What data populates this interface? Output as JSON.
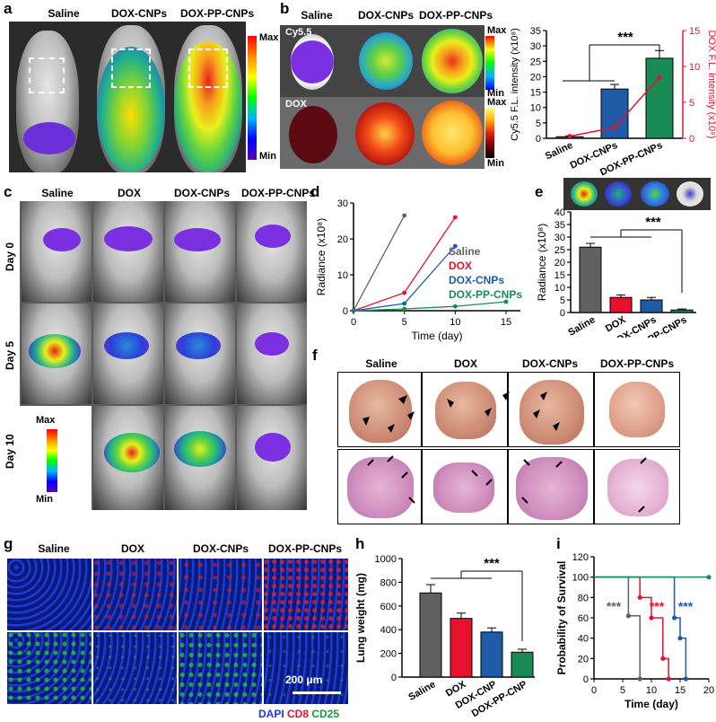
{
  "labels": {
    "a": "a",
    "b": "b",
    "c": "c",
    "d": "d",
    "e": "e",
    "f": "f",
    "g": "g",
    "h": "h",
    "i": "i"
  },
  "panel_a": {
    "groups": [
      "Saline",
      "DOX-CNPs",
      "DOX-PP-CNPs"
    ],
    "scale_max": "Max",
    "scale_min": "Min"
  },
  "panel_b": {
    "groups": [
      "Saline",
      "DOX-CNPs",
      "DOX-PP-CNPs"
    ],
    "row1": "Cy5.5",
    "row2": "DOX",
    "scale_max": "Max",
    "scale_min": "Min",
    "scale2_max": "Max",
    "scale2_min": "Min"
  },
  "panel_c": {
    "groups": [
      "Saline",
      "DOX",
      "DOX-CNPs",
      "DOX-PP-CNPs"
    ],
    "days": [
      "Day 0",
      "Day 5",
      "Day 10"
    ],
    "scale_max": "Max",
    "scale_min": "Min"
  },
  "panel_f": {
    "groups": [
      "Saline",
      "DOX",
      "DOX-CNPs",
      "DOX-PP-CNPs"
    ]
  },
  "panel_g": {
    "groups": [
      "Saline",
      "DOX",
      "DOX-CNPs",
      "DOX-PP-CNPs"
    ],
    "scale_bar": "200 μm",
    "legend": {
      "dapi": "DAPI",
      "cd8": "CD8",
      "cd25": "CD25"
    }
  },
  "colors": {
    "saline": "#606060",
    "dox": "#e8112d",
    "cnps": "#1f5aa6",
    "pp": "#1a8a55"
  },
  "chart_data": [
    {
      "id": "b",
      "type": "bar+line",
      "categories": [
        "Saline",
        "DOX-CNPs",
        "DOX-PP-CNPs"
      ],
      "values": [
        0.5,
        16,
        26
      ],
      "errors": [
        0.3,
        1.5,
        2.5
      ],
      "ylabel": "Cy5.5 F.L. intensity (x10⁸)",
      "ylim": [
        0,
        35
      ],
      "yticks": [
        "0",
        "5",
        "10",
        "15",
        "20",
        "25",
        "30",
        "35"
      ],
      "y2label": "DOX F.L. intensity (x10⁸)",
      "y2lim": [
        0,
        15
      ],
      "y2ticks": [
        "0",
        "5",
        "10",
        "15"
      ],
      "line_values": [
        0.3,
        1.5,
        8.5
      ],
      "sig": "***"
    },
    {
      "id": "d",
      "type": "line",
      "x": [
        0,
        5,
        10,
        15
      ],
      "series": [
        {
          "name": "Saline",
          "values": [
            0,
            26.5,
            null,
            null
          ]
        },
        {
          "name": "DOX",
          "values": [
            0,
            5,
            26,
            null
          ]
        },
        {
          "name": "DOX-CNPs",
          "values": [
            0,
            2,
            18,
            null
          ]
        },
        {
          "name": "DOX-PP-CNPs",
          "values": [
            0,
            0.5,
            1.2,
            2.5
          ]
        }
      ],
      "xlabel": "Time (day)",
      "ylabel": "Radiance (x10⁸)",
      "xlim": [
        0,
        15
      ],
      "ylim": [
        0,
        30
      ],
      "xticks": [
        "0",
        "5",
        "10",
        "15"
      ],
      "yticks": [
        "0",
        "10",
        "20",
        "30"
      ]
    },
    {
      "id": "e",
      "type": "bar",
      "categories": [
        "Saline",
        "DOX",
        "DOX-CNPs",
        "DOX-PP-CNPs"
      ],
      "values": [
        26,
        6,
        5,
        1
      ],
      "errors": [
        1.5,
        1,
        1,
        0.4
      ],
      "ylabel": "Radiance (x10⁸)",
      "ylim": [
        0,
        40
      ],
      "yticks": [
        "0",
        "5",
        "10",
        "15",
        "20",
        "25",
        "30",
        "35",
        "40"
      ],
      "sig": "***"
    },
    {
      "id": "h",
      "type": "bar",
      "categories": [
        "Saline",
        "DOX",
        "DOX-CNP",
        "DOX-PP-CNP"
      ],
      "values": [
        710,
        495,
        380,
        210
      ],
      "errors": [
        70,
        45,
        35,
        25
      ],
      "ylabel": "Lung weight (mg)",
      "ylim": [
        0,
        1000
      ],
      "yticks": [
        "0",
        "200",
        "400",
        "600",
        "800",
        "1000"
      ],
      "sig": "***"
    },
    {
      "id": "i",
      "type": "survival",
      "xlabel": "Time (day)",
      "ylabel": "Probability of Survival",
      "xlim": [
        0,
        20
      ],
      "ylim": [
        0,
        120
      ],
      "xticks": [
        "0",
        "5",
        "10",
        "15",
        "20"
      ],
      "yticks": [
        "0",
        "20",
        "40",
        "60",
        "80",
        "100",
        "120"
      ],
      "series": [
        {
          "name": "Saline",
          "times": [
            0,
            6,
            8
          ],
          "surv": [
            100,
            62,
            0
          ]
        },
        {
          "name": "DOX",
          "times": [
            0,
            8,
            10,
            12,
            13
          ],
          "surv": [
            100,
            80,
            60,
            20,
            0
          ]
        },
        {
          "name": "DOX-CNPs",
          "times": [
            0,
            14,
            15,
            16
          ],
          "surv": [
            100,
            60,
            40,
            0
          ]
        },
        {
          "name": "DOX-PP-CNPs",
          "times": [
            0,
            20
          ],
          "surv": [
            100,
            100
          ]
        }
      ],
      "sig": [
        "***",
        "***",
        "***"
      ]
    }
  ]
}
